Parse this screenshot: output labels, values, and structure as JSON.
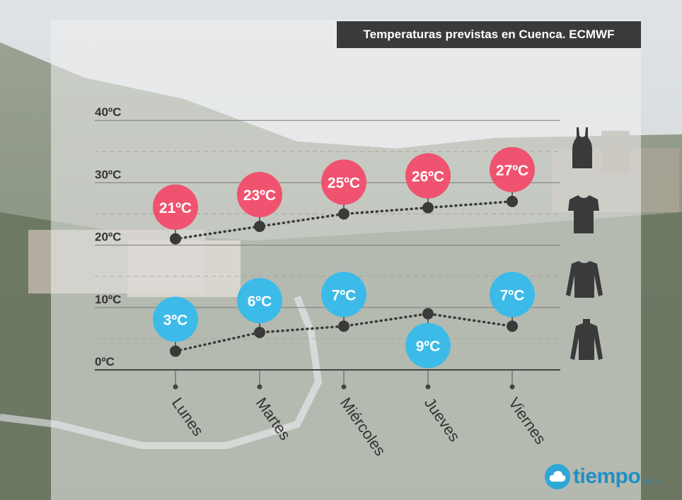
{
  "title": "Temperaturas previstas en Cuenca. ECMWF",
  "brand": {
    "word": "tiempo",
    "domain": ".com",
    "logo_icon": "cloud-in-circle-icon"
  },
  "colors": {
    "max": "#f0536f",
    "min": "#3dbbe8",
    "axis": "#333333",
    "dots": "#3a3a3a"
  },
  "clothing_icons": [
    "tank-top-icon",
    "t-shirt-icon",
    "long-sleeve-shirt-icon",
    "turtleneck-icon"
  ],
  "chart_data": {
    "type": "line",
    "title": "Temperaturas previstas en Cuenca. ECMWF",
    "categories": [
      "Lunes",
      "Martes",
      "Miércoles",
      "Jueves",
      "Viernes"
    ],
    "series": [
      {
        "values": [
          21,
          23,
          25,
          26,
          27
        ],
        "labels": [
          "21ºC",
          "23ºC",
          "25ºC",
          "26ºC",
          "27ºC"
        ]
      },
      {
        "values": [
          3,
          6,
          7,
          9,
          7
        ],
        "labels": [
          "3ºC",
          "6ºC",
          "7ºC",
          "9ºC",
          "7ºC"
        ]
      }
    ],
    "ylim": [
      0,
      40
    ],
    "yticks": [
      0,
      10,
      20,
      30,
      40
    ],
    "ytick_labels": [
      "0ºC",
      "10ºC",
      "20ºC",
      "30ºC",
      "40ºC"
    ],
    "grid": true,
    "xlabel": "",
    "ylabel": ""
  }
}
